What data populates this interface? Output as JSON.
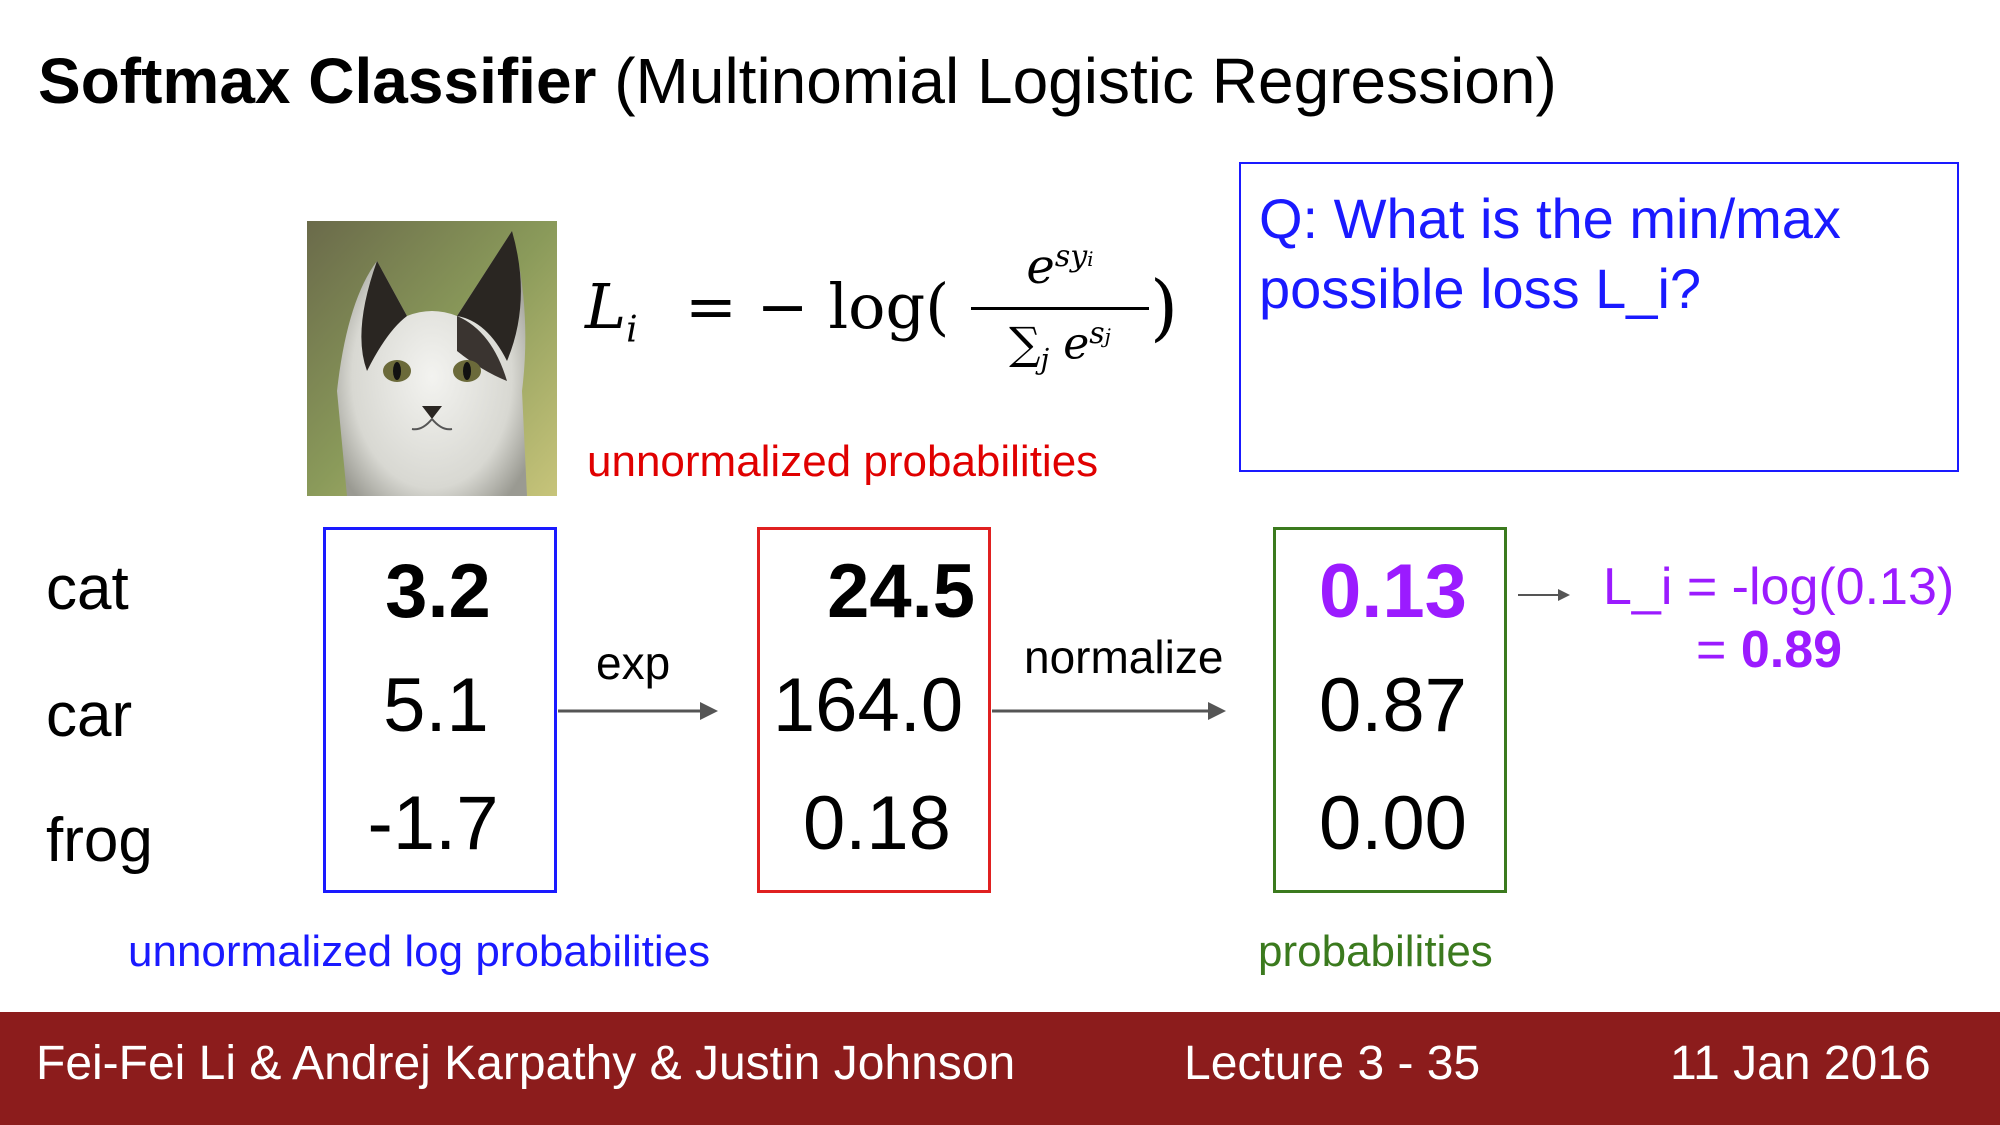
{
  "title": {
    "bold": "Softmax Classifier",
    "rest": " (Multinomial Logistic Regression)"
  },
  "formula": {
    "lhs": "L",
    "lhs_sub": "i",
    "eq": "= − log(",
    "numerator": "e",
    "num_exp": "s",
    "num_exp_sub": "y",
    "num_exp_sub2": "i",
    "denominator": "∑",
    "den_sub": "j",
    "den_e": "e",
    "den_exp": "s",
    "den_exp_sub": "j",
    "rparen": ")"
  },
  "question": "Q: What is the min/max possible loss L_i?",
  "labels": {
    "unnormalized_probabilities": "unnormalized probabilities",
    "unnormalized_log_probabilities": "unnormalized log probabilities",
    "probabilities": "probabilities",
    "exp": "exp",
    "normalize": "normalize"
  },
  "classes": [
    "cat",
    "car",
    "frog"
  ],
  "scores": [
    "3.2",
    "5.1",
    "-1.7"
  ],
  "exp_values": [
    "24.5",
    "164.0",
    "0.18"
  ],
  "prob_values": [
    "0.13",
    "0.87",
    "0.00"
  ],
  "loss": {
    "line1": "L_i = -log(0.13)",
    "line2_prefix": "= ",
    "line2_value": "0.89"
  },
  "footer": {
    "authors": "Fei-Fei Li & Andrej Karpathy & Justin Johnson",
    "lecture": "Lecture 3 - 35",
    "date": "11 Jan 2016"
  },
  "colors": {
    "blue": "#1a1aff",
    "red": "#e00000",
    "green": "#3b7a1e",
    "purple": "#9b1bff",
    "footer": "#8c1c1c"
  }
}
